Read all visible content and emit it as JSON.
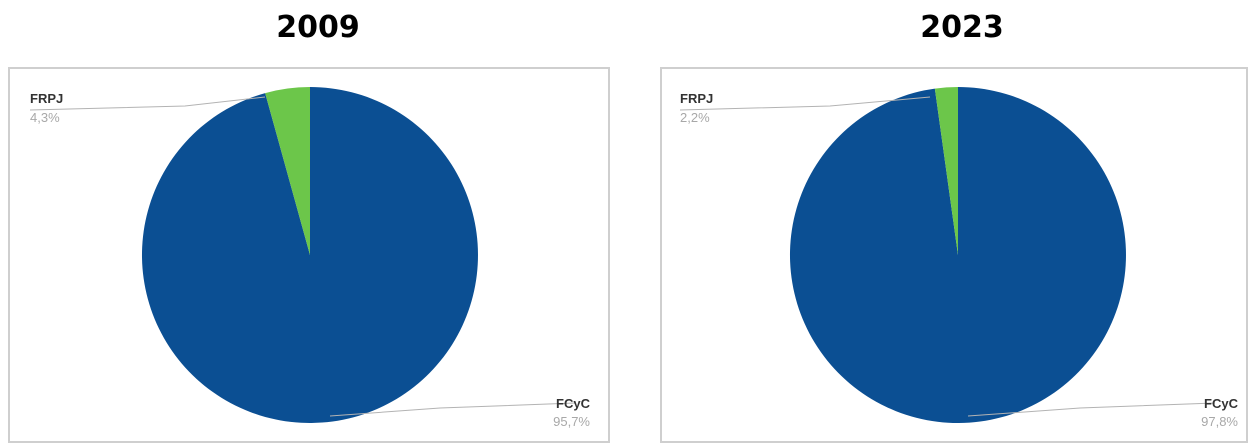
{
  "chart_data": [
    {
      "type": "pie",
      "title": "2009",
      "colors": [
        "#0b4f93",
        "#6cc64a"
      ],
      "slices": [
        {
          "label": "FCyC",
          "value": 95.7,
          "value_label": "95,7%"
        },
        {
          "label": "FRPJ",
          "value": 4.3,
          "value_label": "4,3%"
        }
      ]
    },
    {
      "type": "pie",
      "title": "2023",
      "colors": [
        "#0b4f93",
        "#6cc64a"
      ],
      "slices": [
        {
          "label": "FCyC",
          "value": 97.8,
          "value_label": "97,8%"
        },
        {
          "label": "FRPJ",
          "value": 2.2,
          "value_label": "2,2%"
        }
      ]
    }
  ]
}
